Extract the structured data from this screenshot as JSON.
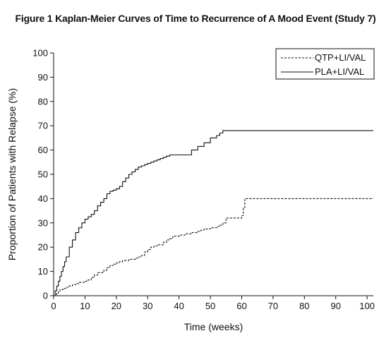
{
  "title": "Figure 1 Kaplan-Meier Curves of Time to Recurrence of A Mood Event (Study 7)",
  "chart_data": {
    "type": "line",
    "title": "Figure 1 Kaplan-Meier Curves of Time to Recurrence of A Mood Event (Study 7)",
    "xlabel": "Time (weeks)",
    "ylabel": "Proportion of Patients with Relapse (%)",
    "xlim": [
      0,
      102
    ],
    "ylim": [
      0,
      100
    ],
    "xticks": [
      0,
      10,
      20,
      30,
      40,
      50,
      60,
      70,
      80,
      90,
      100
    ],
    "yticks": [
      0,
      10,
      20,
      30,
      40,
      50,
      60,
      70,
      80,
      90,
      100
    ],
    "grid": false,
    "legend_position": "top-right",
    "step": true,
    "series": [
      {
        "name": "QTP+LI/VAL",
        "line_style": "dashed",
        "color": "#111111",
        "x": [
          0,
          0.5,
          1,
          1.5,
          2,
          3,
          4,
          5,
          6,
          7,
          8,
          10,
          11,
          12,
          13,
          14,
          16,
          17,
          18,
          19,
          20,
          21,
          22,
          24,
          26,
          27,
          28,
          29,
          30,
          31,
          32,
          33,
          35,
          36,
          37,
          38,
          40,
          42,
          44,
          46,
          47,
          48,
          50,
          52,
          53,
          54,
          55,
          60,
          60.5,
          61,
          102
        ],
        "y": [
          0,
          0.5,
          1,
          2,
          2.5,
          3,
          3.5,
          4,
          4.5,
          5,
          5.5,
          6,
          6.5,
          7.5,
          8.5,
          9.5,
          10.5,
          11.5,
          12.5,
          13,
          13.5,
          14,
          14.5,
          15,
          15.5,
          16,
          16.5,
          18,
          19,
          20,
          20.5,
          21,
          22,
          23,
          23.5,
          24.5,
          25,
          25.5,
          26,
          26.5,
          27,
          27.5,
          28,
          28.5,
          29,
          30,
          32,
          33,
          36,
          40,
          40
        ]
      },
      {
        "name": "PLA+LI/VAL",
        "line_style": "solid",
        "color": "#111111",
        "x": [
          0,
          0.5,
          1,
          1.5,
          2,
          2.5,
          3,
          3.5,
          4,
          5,
          6,
          7,
          8,
          9,
          10,
          11,
          12,
          13,
          14,
          15,
          16,
          17,
          18,
          19,
          20,
          21,
          22,
          23,
          24,
          25,
          26,
          27,
          28,
          29,
          30,
          31,
          32,
          33,
          34,
          35,
          36,
          37,
          44,
          46,
          48,
          50,
          52,
          53,
          54,
          102
        ],
        "y": [
          0,
          2,
          4,
          6,
          8,
          10,
          12,
          14,
          16,
          20,
          23,
          26,
          28,
          30,
          31.5,
          32.5,
          33.5,
          35,
          37,
          38.5,
          40,
          42,
          43,
          43.5,
          44,
          45,
          47,
          48.5,
          50,
          51,
          52,
          53,
          53.5,
          54,
          54.5,
          55,
          55.5,
          56,
          56.5,
          57,
          57.5,
          58,
          60,
          61.5,
          63,
          65,
          66,
          67,
          68,
          68
        ]
      }
    ]
  }
}
